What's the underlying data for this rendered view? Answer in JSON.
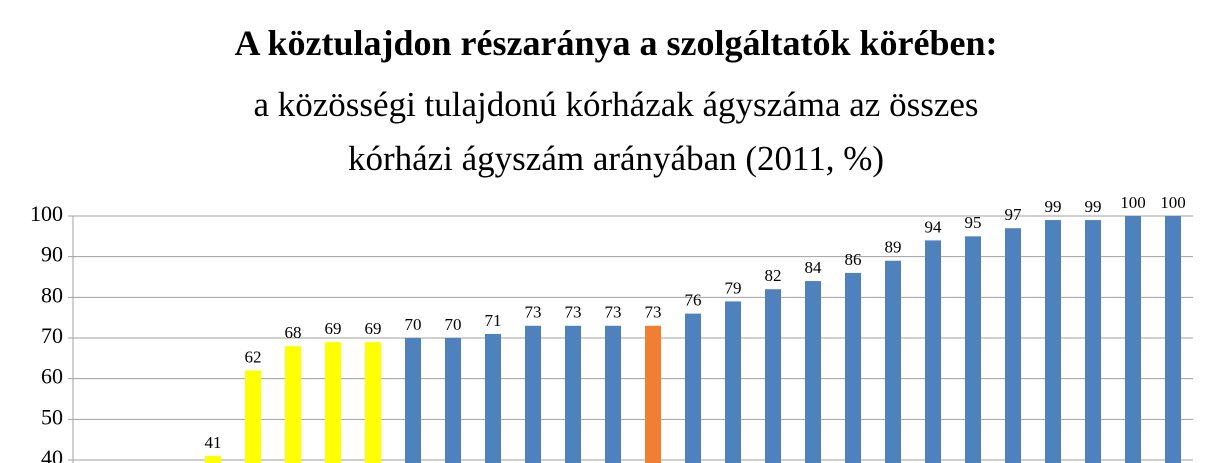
{
  "chart_data": {
    "type": "bar",
    "title": "A köztulajdon részaránya a szolgáltatók körében:",
    "subtitle": "a közösségi tulajdonú kórházak ágyszáma az összes kórházi ágyszám arányában (2011, %)",
    "categories": [
      null,
      null,
      null,
      null,
      null,
      null,
      null,
      null,
      null,
      null,
      null,
      null,
      null,
      null,
      null,
      null,
      null,
      null,
      null,
      null,
      null,
      null,
      null,
      null,
      null,
      null,
      null,
      null
    ],
    "values": [
      null,
      null,
      null,
      41,
      62,
      68,
      69,
      69,
      70,
      70,
      71,
      73,
      73,
      73,
      73,
      76,
      79,
      82,
      84,
      86,
      89,
      94,
      95,
      97,
      99,
      99,
      100,
      100
    ],
    "colors": [
      "#4f81bd",
      "#4f81bd",
      "#4f81bd",
      "#ffff00",
      "#ffff00",
      "#ffff00",
      "#ffff00",
      "#ffff00",
      "#4f81bd",
      "#4f81bd",
      "#4f81bd",
      "#4f81bd",
      "#4f81bd",
      "#4f81bd",
      "#f07f34",
      "#4f81bd",
      "#4f81bd",
      "#4f81bd",
      "#4f81bd",
      "#4f81bd",
      "#4f81bd",
      "#4f81bd",
      "#4f81bd",
      "#4f81bd",
      "#4f81bd",
      "#4f81bd",
      "#4f81bd",
      "#4f81bd"
    ],
    "ylim": [
      40,
      100
    ],
    "yticks": [
      40,
      50,
      60,
      70,
      80,
      90,
      100
    ],
    "grid": true
  }
}
